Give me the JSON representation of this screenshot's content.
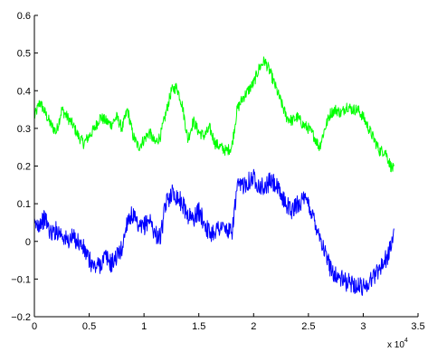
{
  "chart_data": {
    "type": "line",
    "title": "",
    "xlabel": "",
    "ylabel": "",
    "xlim": [
      0,
      35000
    ],
    "ylim": [
      -0.2,
      0.6
    ],
    "grid": false,
    "x_ticks": [
      0,
      5000,
      10000,
      15000,
      20000,
      25000,
      30000,
      35000
    ],
    "x_tick_labels": [
      "0",
      "0.5",
      "1",
      "1.5",
      "2",
      "2.5",
      "3",
      "3.5"
    ],
    "x_multiplier": {
      "base": "x 10",
      "exponent": "4"
    },
    "y_ticks": [
      -0.2,
      -0.1,
      0,
      0.1,
      0.2,
      0.3,
      0.4,
      0.5,
      0.6
    ],
    "y_tick_labels": [
      "−0.2",
      "−0.1",
      "0",
      "0.1",
      "0.2",
      "0.3",
      "0.4",
      "0.5",
      "0.6"
    ],
    "series": [
      {
        "color": "#00ff00",
        "noise": 0.015,
        "x": [
          0,
          500,
          1000,
          1500,
          2000,
          2500,
          3000,
          3500,
          4000,
          4500,
          5000,
          5500,
          6000,
          6500,
          7000,
          7500,
          8000,
          8500,
          9000,
          9500,
          10000,
          10500,
          11000,
          11500,
          12000,
          12500,
          13000,
          13500,
          14000,
          14500,
          15000,
          15500,
          16000,
          16500,
          17000,
          17500,
          18000,
          18500,
          19000,
          19500,
          20000,
          20500,
          21000,
          21500,
          22000,
          22500,
          23000,
          23500,
          24000,
          24500,
          25000,
          25500,
          26000,
          26500,
          27000,
          27500,
          28000,
          28500,
          29000,
          29500,
          30000,
          30500,
          31000,
          31500,
          32000,
          32500,
          32800
        ],
        "y": [
          0.33,
          0.37,
          0.34,
          0.31,
          0.29,
          0.35,
          0.33,
          0.31,
          0.28,
          0.26,
          0.28,
          0.3,
          0.33,
          0.32,
          0.31,
          0.33,
          0.3,
          0.35,
          0.28,
          0.25,
          0.27,
          0.29,
          0.26,
          0.28,
          0.34,
          0.4,
          0.41,
          0.36,
          0.27,
          0.32,
          0.29,
          0.28,
          0.3,
          0.26,
          0.25,
          0.24,
          0.25,
          0.35,
          0.38,
          0.4,
          0.42,
          0.46,
          0.48,
          0.45,
          0.41,
          0.37,
          0.33,
          0.32,
          0.33,
          0.31,
          0.3,
          0.28,
          0.25,
          0.3,
          0.34,
          0.35,
          0.34,
          0.36,
          0.35,
          0.35,
          0.33,
          0.3,
          0.27,
          0.24,
          0.24,
          0.2,
          0.19
        ]
      },
      {
        "color": "#0000ff",
        "noise": 0.025,
        "x": [
          0,
          500,
          1000,
          1500,
          2000,
          2500,
          3000,
          3500,
          4000,
          4500,
          5000,
          5500,
          6000,
          6500,
          7000,
          7500,
          8000,
          8500,
          9000,
          9500,
          10000,
          10500,
          11000,
          11500,
          12000,
          12500,
          13000,
          13500,
          14000,
          14500,
          15000,
          15500,
          16000,
          16500,
          17000,
          17500,
          18000,
          18500,
          19000,
          19500,
          20000,
          20500,
          21000,
          21500,
          22000,
          22500,
          23000,
          23500,
          24000,
          24500,
          25000,
          25500,
          26000,
          26500,
          27000,
          27500,
          28000,
          28500,
          29000,
          29500,
          30000,
          30500,
          31000,
          31500,
          32000,
          32500,
          32800
        ],
        "y": [
          0.04,
          0.05,
          0.06,
          0.02,
          0.03,
          0.02,
          0.0,
          0.01,
          0.0,
          -0.02,
          -0.05,
          -0.07,
          -0.06,
          -0.04,
          -0.06,
          -0.04,
          -0.02,
          0.06,
          0.07,
          0.03,
          0.04,
          0.06,
          0.02,
          0.01,
          0.1,
          0.13,
          0.12,
          0.1,
          0.07,
          0.06,
          0.08,
          0.05,
          0.02,
          0.03,
          0.04,
          0.03,
          0.02,
          0.14,
          0.15,
          0.16,
          0.17,
          0.15,
          0.14,
          0.16,
          0.15,
          0.12,
          0.1,
          0.08,
          0.1,
          0.11,
          0.1,
          0.06,
          0.02,
          -0.03,
          -0.07,
          -0.09,
          -0.1,
          -0.11,
          -0.11,
          -0.12,
          -0.12,
          -0.11,
          -0.09,
          -0.07,
          -0.05,
          -0.02,
          0.03
        ]
      }
    ]
  }
}
